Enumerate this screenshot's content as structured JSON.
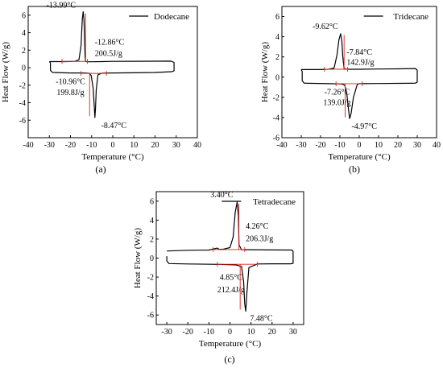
{
  "chart_data": [
    {
      "type": "line",
      "panel_label": "(a)",
      "xlabel": "Temperature (°C)",
      "ylabel": "Heat Flow (W/g)",
      "xlim": [
        -40,
        40
      ],
      "ylim": [
        -8,
        7
      ],
      "xticks": [
        -40,
        -30,
        -20,
        -10,
        0,
        10,
        20,
        30,
        40
      ],
      "yticks": [
        -6,
        -4,
        -2,
        0,
        2,
        4,
        6
      ],
      "legend": {
        "position": "top-right",
        "label": "Dodecane"
      },
      "series": [
        {
          "name": "Dodecane",
          "x": [
            -30,
            -26,
            -22,
            -18,
            -16,
            -15,
            -14.4,
            -14,
            -13.6,
            -13.1,
            -12.9,
            -12.2,
            -10,
            -5,
            0,
            10,
            20,
            27.5,
            29,
            29,
            28,
            20,
            10,
            0,
            -5,
            -7,
            -7.8,
            -8.2,
            -8.47,
            -8.8,
            -9.3,
            -10.2,
            -11,
            -13,
            -20,
            -28.5,
            -29.5,
            -29.5,
            -30
          ],
          "y": [
            0.7,
            0.7,
            0.7,
            0.72,
            0.9,
            2.5,
            5.6,
            6.4,
            5.4,
            1.3,
            0.75,
            0.68,
            0.68,
            0.7,
            0.72,
            0.73,
            0.74,
            0.75,
            0.6,
            -0.35,
            -0.45,
            -0.55,
            -0.58,
            -0.6,
            -0.62,
            -0.8,
            -2.5,
            -4.8,
            -5.7,
            -4.2,
            -2.3,
            -0.9,
            -0.65,
            -0.6,
            -0.6,
            -0.55,
            -0.3,
            0.55,
            0.7
          ]
        }
      ],
      "annotations": [
        {
          "text": "-13.99°C",
          "x": -13.99,
          "y": 6.4
        },
        {
          "text": "-12.86°C",
          "x": -12.86
        },
        {
          "text": "200.5J/g"
        },
        {
          "text": "-10.96°C",
          "x": -10.96
        },
        {
          "text": "199.8J/g"
        },
        {
          "text": "-8.47°C",
          "x": -8.47,
          "y": -5.7
        }
      ]
    },
    {
      "type": "line",
      "panel_label": "(b)",
      "xlabel": "Temperature (°C)",
      "ylabel": "Heat Flow (W/g)",
      "xlim": [
        -40,
        40
      ],
      "ylim": [
        -6,
        7
      ],
      "xticks": [
        -40,
        -30,
        -20,
        -10,
        0,
        10,
        20,
        30,
        40
      ],
      "yticks": [
        -6,
        -4,
        -2,
        0,
        2,
        4,
        6
      ],
      "legend": {
        "position": "top-right",
        "label": "Tridecane"
      },
      "series": [
        {
          "name": "Tridecane",
          "x": [
            -30,
            -20,
            -16,
            -13,
            -11.5,
            -10.5,
            -9.62,
            -9,
            -8.5,
            -7.84,
            -7,
            -5,
            0,
            10,
            20,
            29,
            30,
            30,
            29,
            20,
            10,
            0,
            -1,
            -3,
            -4.2,
            -4.97,
            -5.5,
            -6.5,
            -7.5,
            -9,
            -15,
            -28.5,
            -29.5,
            -29.5,
            -30
          ],
          "y": [
            0.75,
            0.75,
            0.78,
            0.9,
            2.2,
            3.7,
            4.3,
            3.6,
            2.0,
            0.85,
            0.8,
            0.78,
            0.78,
            0.8,
            0.82,
            0.85,
            0.7,
            -0.5,
            -0.6,
            -0.62,
            -0.63,
            -0.65,
            -0.72,
            -2.0,
            -3.6,
            -4.1,
            -3.3,
            -1.5,
            -0.8,
            -0.68,
            -0.65,
            -0.6,
            -0.35,
            0.55,
            0.75
          ]
        }
      ],
      "annotations": [
        {
          "text": "-9.62°C",
          "x": -9.62,
          "y": 4.3
        },
        {
          "text": "-7.84°C",
          "x": -7.84
        },
        {
          "text": "142.9J/g"
        },
        {
          "text": "-7.26°C",
          "x": -7.26
        },
        {
          "text": "139.0J/g"
        },
        {
          "text": "-4.97°C",
          "x": -4.97,
          "y": -4.1
        }
      ]
    },
    {
      "type": "line",
      "panel_label": "(c)",
      "xlabel": "Temperature (°C)",
      "ylabel": "Heat Flow (W/g)",
      "xlim": [
        -35,
        35
      ],
      "ylim": [
        -7,
        7
      ],
      "xticks": [
        -30,
        -20,
        -10,
        0,
        10,
        20,
        30
      ],
      "yticks": [
        -6,
        -4,
        -2,
        0,
        2,
        4,
        6
      ],
      "legend": {
        "position": "top-right",
        "label": "Tetradecane"
      },
      "series": [
        {
          "name": "Tetradecane",
          "x": [
            -30,
            -20,
            -10,
            -6,
            -5,
            -3,
            0,
            1.5,
            2.5,
            3.4,
            4,
            4.3,
            5.5,
            10,
            20,
            29.5,
            30,
            30,
            29,
            20,
            13,
            9,
            8,
            7.48,
            7,
            6.5,
            5.5,
            3,
            -5,
            -20,
            -29,
            -30,
            -30
          ],
          "y": [
            0.75,
            0.82,
            0.85,
            1.05,
            0.92,
            0.95,
            1.1,
            2.2,
            4.8,
            5.9,
            4.5,
            1.4,
            0.88,
            0.88,
            0.86,
            0.85,
            0.7,
            -0.55,
            -0.6,
            -0.6,
            -0.62,
            -1.0,
            -3.8,
            -5.6,
            -4.8,
            -2.5,
            -0.9,
            -0.72,
            -0.66,
            -0.62,
            -0.58,
            -0.3,
            0.2
          ]
        }
      ],
      "annotations": [
        {
          "text": "3.40°C",
          "x": 3.4,
          "y": 5.9
        },
        {
          "text": "4.26°C",
          "x": 4.26
        },
        {
          "text": "206.3J/g"
        },
        {
          "text": "4.85°C",
          "x": 4.85
        },
        {
          "text": "212.4J/g"
        },
        {
          "text": "7.48°C",
          "x": 7.48,
          "y": -5.6
        }
      ]
    }
  ],
  "colors": {
    "curve": "#000000",
    "analysis": "#e02020",
    "axis": "#000000"
  }
}
